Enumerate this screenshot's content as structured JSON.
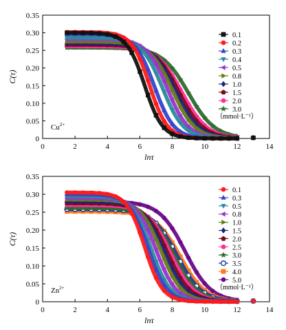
{
  "chart_data": [
    {
      "type": "line",
      "ion_label": "Cu",
      "ion_charge": "2+",
      "xlabel": "lnτ",
      "ylabel": "C(τ)",
      "xlim": [
        0,
        14
      ],
      "ylim": [
        0,
        0.35
      ],
      "xticks": [
        0,
        2,
        4,
        6,
        8,
        10,
        12,
        14
      ],
      "yticks": [
        0,
        0.05,
        0.1,
        0.15,
        0.2,
        0.25,
        0.3,
        0.35
      ],
      "grid": false,
      "legend_position": "right",
      "legend_unit": "（mmol·L⁻¹）",
      "series": [
        {
          "name": "0.1",
          "color": "#111111",
          "marker": "square",
          "plateau": 0.3,
          "midpoint": 6.3,
          "width": 0.55
        },
        {
          "name": "0.2",
          "color": "#ff1a1a",
          "marker": "circle",
          "plateau": 0.302,
          "midpoint": 6.6,
          "width": 0.55
        },
        {
          "name": "0.3",
          "color": "#3344cc",
          "marker": "triangle-up",
          "plateau": 0.296,
          "midpoint": 6.9,
          "width": 0.6
        },
        {
          "name": "0.4",
          "color": "#2a8a9a",
          "marker": "triangle-down",
          "plateau": 0.286,
          "midpoint": 7.4,
          "width": 0.65
        },
        {
          "name": "0.5",
          "color": "#9933cc",
          "marker": "triangle-left",
          "plateau": 0.282,
          "midpoint": 7.7,
          "width": 0.65
        },
        {
          "name": "0.8",
          "color": "#6a7a1a",
          "marker": "triangle-right",
          "plateau": 0.275,
          "midpoint": 8.0,
          "width": 0.7
        },
        {
          "name": "1.0",
          "color": "#1a237e",
          "marker": "diamond",
          "plateau": 0.27,
          "midpoint": 8.2,
          "width": 0.72
        },
        {
          "name": "1.5",
          "color": "#7a0a1a",
          "marker": "pentagon",
          "plateau": 0.266,
          "midpoint": 8.4,
          "width": 0.75
        },
        {
          "name": "2.0",
          "color": "#ff2f9a",
          "marker": "circle",
          "plateau": 0.262,
          "midpoint": 8.6,
          "width": 0.78
        },
        {
          "name": "3.0",
          "color": "#2e6b2e",
          "marker": "star",
          "plateau": 0.258,
          "midpoint": 9.0,
          "width": 0.82
        }
      ],
      "x_points": [
        1.5,
        2.0,
        2.5,
        3.0,
        3.5,
        4.0,
        4.5,
        5.0,
        5.5,
        6.0,
        6.5,
        7.0,
        7.5,
        8.0,
        8.5,
        9.0,
        9.5,
        10.0,
        10.5,
        11.0,
        11.5,
        12.0,
        13.0
      ]
    },
    {
      "type": "line",
      "ion_label": "Zn",
      "ion_charge": "2+",
      "xlabel": "lnτ",
      "ylabel": "C(τ)",
      "xlim": [
        0,
        14
      ],
      "ylim": [
        0,
        0.35
      ],
      "xticks": [
        0,
        2,
        4,
        6,
        8,
        10,
        12,
        14
      ],
      "yticks": [
        0,
        0.05,
        0.1,
        0.15,
        0.2,
        0.25,
        0.3,
        0.35
      ],
      "grid": false,
      "legend_position": "right",
      "legend_unit": "（mmol·L⁻¹）",
      "series": [
        {
          "name": "0.1",
          "color": "#ff1a1a",
          "marker": "circle",
          "plateau": 0.305,
          "midpoint": 6.3,
          "width": 0.55
        },
        {
          "name": "0.3",
          "color": "#3344cc",
          "marker": "triangle-up",
          "plateau": 0.3,
          "midpoint": 6.5,
          "width": 0.58
        },
        {
          "name": "0.5",
          "color": "#2a8a9a",
          "marker": "triangle-down",
          "plateau": 0.295,
          "midpoint": 6.7,
          "width": 0.6
        },
        {
          "name": "0.8",
          "color": "#9933cc",
          "marker": "triangle-left",
          "plateau": 0.29,
          "midpoint": 7.0,
          "width": 0.62
        },
        {
          "name": "1.0",
          "color": "#6a7a1a",
          "marker": "triangle-right",
          "plateau": 0.285,
          "midpoint": 7.3,
          "width": 0.65
        },
        {
          "name": "1.5",
          "color": "#1a237e",
          "marker": "diamond",
          "plateau": 0.28,
          "midpoint": 7.5,
          "width": 0.68
        },
        {
          "name": "2.0",
          "color": "#7a0a1a",
          "marker": "pentagon",
          "plateau": 0.275,
          "midpoint": 7.7,
          "width": 0.7
        },
        {
          "name": "2.5",
          "color": "#ff2f9a",
          "marker": "circle",
          "plateau": 0.27,
          "midpoint": 7.9,
          "width": 0.72
        },
        {
          "name": "3.0",
          "color": "#2e6b2e",
          "marker": "star",
          "plateau": 0.262,
          "midpoint": 8.1,
          "width": 0.74
        },
        {
          "name": "3.5",
          "color": "#1f3a9a",
          "marker": "open-circle",
          "plateau": 0.258,
          "midpoint": 8.3,
          "width": 0.76
        },
        {
          "name": "4.0",
          "color": "#ff7a1a",
          "marker": "square",
          "plateau": 0.252,
          "midpoint": 8.5,
          "width": 0.78
        },
        {
          "name": "5.0",
          "color": "#6a0a8a",
          "marker": "circle",
          "plateau": 0.28,
          "midpoint": 8.8,
          "width": 0.8
        }
      ],
      "x_points": [
        1.5,
        2.0,
        2.5,
        3.0,
        3.5,
        4.0,
        4.5,
        5.0,
        5.5,
        6.0,
        6.5,
        7.0,
        7.5,
        8.0,
        8.5,
        9.0,
        9.5,
        10.0,
        10.5,
        11.0,
        11.5,
        12.0,
        13.0
      ]
    }
  ]
}
